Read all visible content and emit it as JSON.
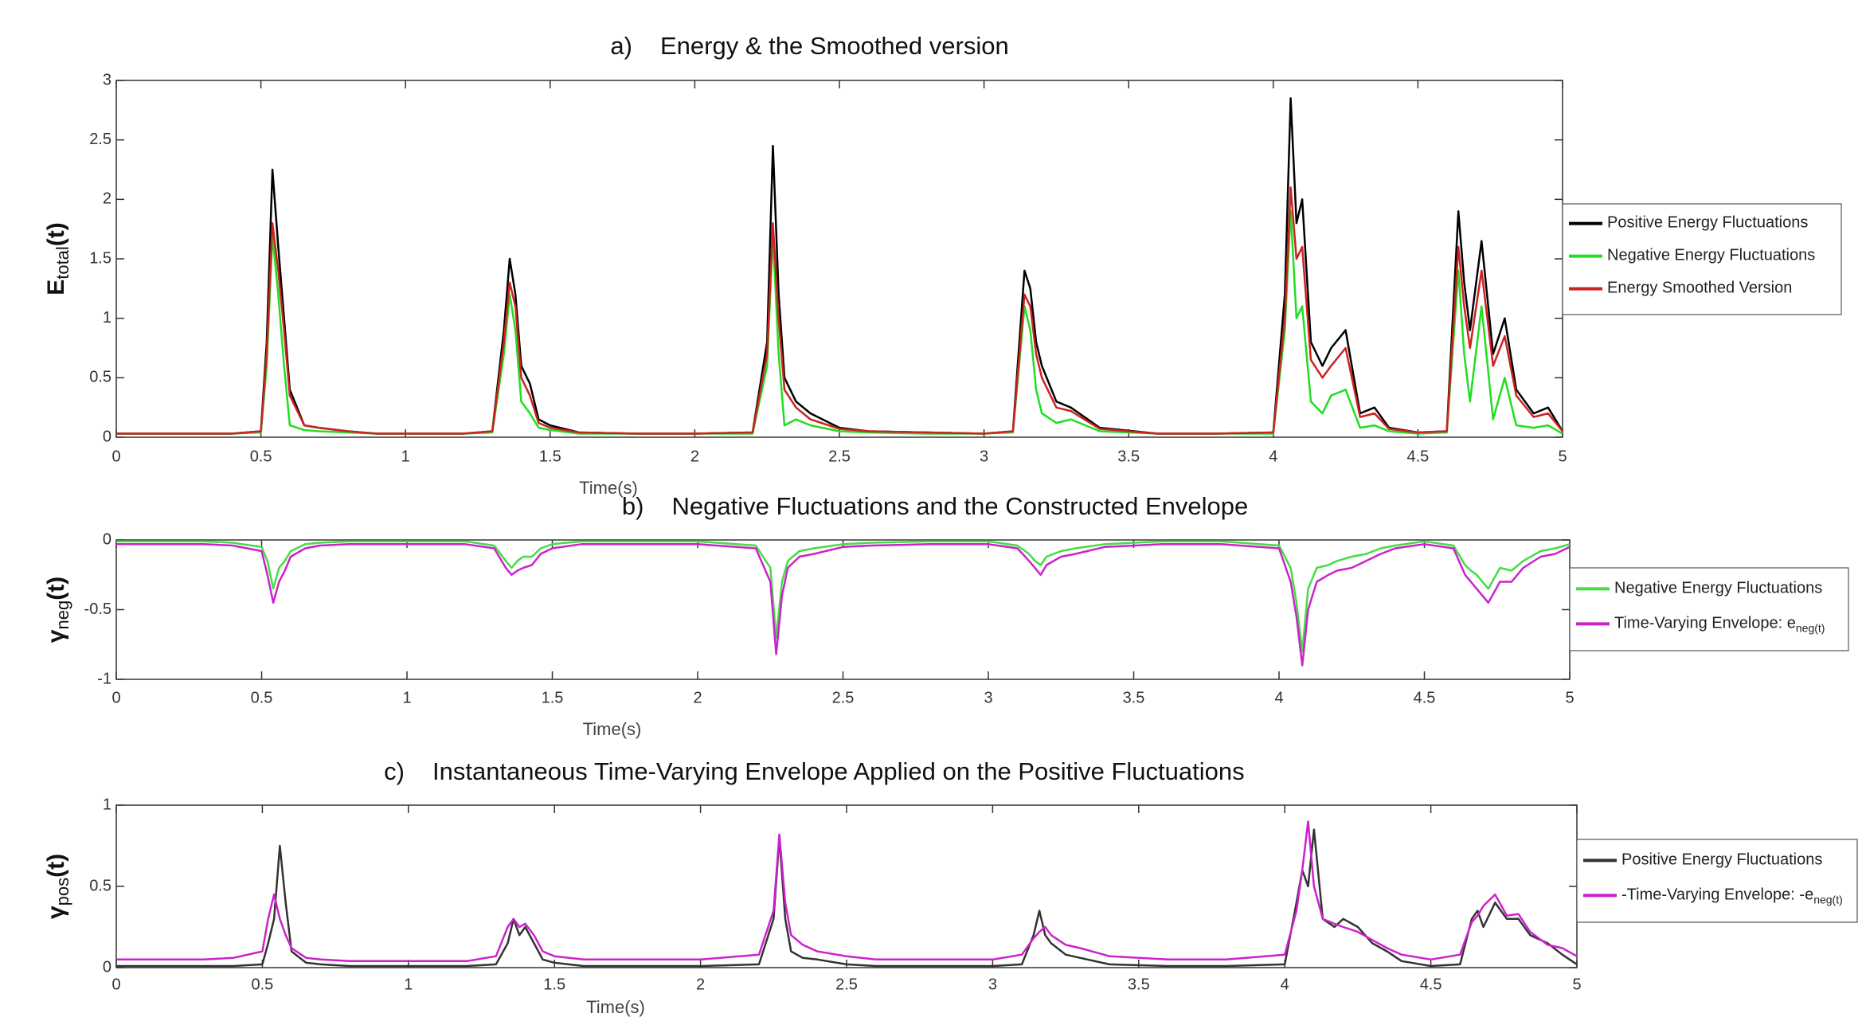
{
  "chart_data": [
    {
      "type": "line",
      "title_tag": "a)",
      "title": "Energy & the Smoothed version",
      "x_label": "Time(s)",
      "y_label": {
        "base": "E",
        "sub": "total",
        "tail": "(t)"
      },
      "xlim": [
        0,
        5
      ],
      "xticks": [
        0,
        0.5,
        1,
        1.5,
        2,
        2.5,
        3,
        3.5,
        4,
        4.5,
        5
      ],
      "ylim": [
        0,
        3
      ],
      "yticks": [
        0,
        0.5,
        1,
        1.5,
        2,
        2.5,
        3
      ],
      "x": [
        0,
        0.1,
        0.2,
        0.3,
        0.4,
        0.5,
        0.52,
        0.54,
        0.56,
        0.58,
        0.6,
        0.65,
        0.7,
        0.8,
        0.9,
        1.0,
        1.1,
        1.2,
        1.3,
        1.34,
        1.36,
        1.38,
        1.4,
        1.43,
        1.46,
        1.5,
        1.6,
        1.8,
        2.0,
        2.2,
        2.25,
        2.27,
        2.29,
        2.31,
        2.35,
        2.4,
        2.5,
        2.6,
        2.8,
        3.0,
        3.1,
        3.14,
        3.16,
        3.18,
        3.2,
        3.25,
        3.3,
        3.4,
        3.6,
        3.8,
        4.0,
        4.04,
        4.06,
        4.08,
        4.1,
        4.13,
        4.17,
        4.2,
        4.25,
        4.3,
        4.35,
        4.4,
        4.5,
        4.6,
        4.64,
        4.66,
        4.68,
        4.72,
        4.76,
        4.8,
        4.84,
        4.9,
        4.95,
        5.0
      ],
      "series": [
        {
          "name": "Positive Energy Fluctuations",
          "color": "#000000",
          "values": [
            0.03,
            0.03,
            0.03,
            0.03,
            0.03,
            0.05,
            0.8,
            2.25,
            1.6,
            1.0,
            0.4,
            0.1,
            0.08,
            0.05,
            0.03,
            0.03,
            0.03,
            0.03,
            0.05,
            0.9,
            1.5,
            1.2,
            0.6,
            0.45,
            0.15,
            0.1,
            0.04,
            0.03,
            0.03,
            0.04,
            0.8,
            2.45,
            1.2,
            0.5,
            0.3,
            0.2,
            0.08,
            0.05,
            0.04,
            0.03,
            0.05,
            1.4,
            1.25,
            0.8,
            0.6,
            0.3,
            0.25,
            0.08,
            0.03,
            0.03,
            0.04,
            1.2,
            2.85,
            1.8,
            2.0,
            0.8,
            0.6,
            0.75,
            0.9,
            0.2,
            0.25,
            0.08,
            0.04,
            0.05,
            1.9,
            1.3,
            0.9,
            1.65,
            0.7,
            1.0,
            0.4,
            0.2,
            0.25,
            0.05
          ]
        },
        {
          "name": "Negative Energy Fluctuations",
          "color": "#22dd22",
          "values": [
            0.03,
            0.03,
            0.03,
            0.03,
            0.03,
            0.04,
            0.6,
            1.7,
            1.2,
            0.6,
            0.1,
            0.06,
            0.05,
            0.04,
            0.03,
            0.03,
            0.03,
            0.03,
            0.04,
            0.7,
            1.2,
            0.9,
            0.3,
            0.2,
            0.08,
            0.06,
            0.03,
            0.03,
            0.03,
            0.03,
            0.6,
            1.7,
            0.7,
            0.1,
            0.15,
            0.1,
            0.05,
            0.04,
            0.03,
            0.03,
            0.04,
            1.1,
            0.9,
            0.4,
            0.2,
            0.12,
            0.15,
            0.05,
            0.03,
            0.03,
            0.03,
            0.9,
            1.9,
            1.0,
            1.1,
            0.3,
            0.2,
            0.35,
            0.4,
            0.08,
            0.1,
            0.05,
            0.03,
            0.04,
            1.4,
            0.7,
            0.3,
            1.1,
            0.15,
            0.5,
            0.1,
            0.08,
            0.1,
            0.03
          ]
        },
        {
          "name": "Energy Smoothed Version",
          "color": "#cc2222",
          "values": [
            0.03,
            0.03,
            0.03,
            0.03,
            0.03,
            0.05,
            0.7,
            1.8,
            1.4,
            0.9,
            0.35,
            0.1,
            0.08,
            0.05,
            0.03,
            0.03,
            0.03,
            0.03,
            0.05,
            0.8,
            1.3,
            1.1,
            0.5,
            0.35,
            0.12,
            0.08,
            0.04,
            0.03,
            0.03,
            0.04,
            0.7,
            1.8,
            1.0,
            0.4,
            0.25,
            0.15,
            0.07,
            0.05,
            0.04,
            0.03,
            0.05,
            1.2,
            1.1,
            0.7,
            0.5,
            0.25,
            0.22,
            0.07,
            0.03,
            0.03,
            0.04,
            1.0,
            2.1,
            1.5,
            1.6,
            0.65,
            0.5,
            0.6,
            0.75,
            0.17,
            0.2,
            0.07,
            0.04,
            0.05,
            1.6,
            1.1,
            0.75,
            1.4,
            0.6,
            0.85,
            0.35,
            0.17,
            0.2,
            0.05
          ]
        }
      ]
    },
    {
      "type": "line",
      "title_tag": "b)",
      "title": "Negative Fluctuations and the Constructed Envelope",
      "x_label": "Time(s)",
      "y_label": {
        "base": "γ",
        "sub": "neg",
        "tail": "(t)"
      },
      "xlim": [
        0,
        5
      ],
      "xticks": [
        0,
        0.5,
        1,
        1.5,
        2,
        2.5,
        3,
        3.5,
        4,
        4.5,
        5
      ],
      "ylim": [
        -1,
        0
      ],
      "yticks": [
        -1,
        -0.5,
        0
      ],
      "x": [
        0,
        0.1,
        0.2,
        0.3,
        0.4,
        0.5,
        0.52,
        0.54,
        0.56,
        0.58,
        0.6,
        0.65,
        0.7,
        0.8,
        0.9,
        1.0,
        1.1,
        1.2,
        1.3,
        1.34,
        1.36,
        1.38,
        1.4,
        1.43,
        1.46,
        1.5,
        1.6,
        1.8,
        2.0,
        2.2,
        2.25,
        2.27,
        2.29,
        2.31,
        2.35,
        2.4,
        2.5,
        2.6,
        2.8,
        3.0,
        3.1,
        3.14,
        3.16,
        3.18,
        3.2,
        3.25,
        3.3,
        3.4,
        3.6,
        3.8,
        4.0,
        4.04,
        4.06,
        4.08,
        4.1,
        4.13,
        4.17,
        4.2,
        4.25,
        4.3,
        4.35,
        4.4,
        4.5,
        4.6,
        4.64,
        4.66,
        4.68,
        4.72,
        4.76,
        4.8,
        4.84,
        4.9,
        4.95,
        5.0
      ],
      "series": [
        {
          "name": "Negative Energy Fluctuations",
          "color": "#44dd44",
          "values": [
            -0.01,
            -0.01,
            -0.01,
            -0.01,
            -0.02,
            -0.05,
            -0.15,
            -0.35,
            -0.2,
            -0.15,
            -0.08,
            -0.03,
            -0.02,
            -0.01,
            -0.01,
            -0.01,
            -0.01,
            -0.01,
            -0.04,
            -0.15,
            -0.2,
            -0.15,
            -0.12,
            -0.12,
            -0.06,
            -0.03,
            -0.01,
            -0.01,
            -0.01,
            -0.04,
            -0.2,
            -0.7,
            -0.3,
            -0.15,
            -0.08,
            -0.06,
            -0.03,
            -0.02,
            -0.01,
            -0.01,
            -0.04,
            -0.1,
            -0.15,
            -0.18,
            -0.12,
            -0.08,
            -0.06,
            -0.03,
            -0.01,
            -0.01,
            -0.04,
            -0.2,
            -0.45,
            -0.8,
            -0.35,
            -0.2,
            -0.18,
            -0.15,
            -0.12,
            -0.1,
            -0.06,
            -0.04,
            -0.01,
            -0.04,
            -0.18,
            -0.22,
            -0.25,
            -0.35,
            -0.2,
            -0.22,
            -0.15,
            -0.08,
            -0.06,
            -0.03
          ]
        },
        {
          "name": "Time-Varying Envelope: e",
          "name_sub": "neg(t)",
          "color": "#cc22cc",
          "values": [
            -0.03,
            -0.03,
            -0.03,
            -0.03,
            -0.04,
            -0.08,
            -0.25,
            -0.45,
            -0.3,
            -0.22,
            -0.12,
            -0.06,
            -0.04,
            -0.03,
            -0.03,
            -0.03,
            -0.03,
            -0.03,
            -0.06,
            -0.2,
            -0.25,
            -0.22,
            -0.2,
            -0.18,
            -0.1,
            -0.06,
            -0.03,
            -0.03,
            -0.03,
            -0.06,
            -0.3,
            -0.82,
            -0.4,
            -0.2,
            -0.12,
            -0.1,
            -0.05,
            -0.04,
            -0.03,
            -0.03,
            -0.06,
            -0.15,
            -0.2,
            -0.25,
            -0.18,
            -0.12,
            -0.1,
            -0.05,
            -0.03,
            -0.03,
            -0.06,
            -0.3,
            -0.55,
            -0.9,
            -0.5,
            -0.3,
            -0.25,
            -0.22,
            -0.2,
            -0.15,
            -0.1,
            -0.06,
            -0.03,
            -0.06,
            -0.25,
            -0.3,
            -0.35,
            -0.45,
            -0.3,
            -0.3,
            -0.2,
            -0.12,
            -0.1,
            -0.05
          ]
        }
      ]
    },
    {
      "type": "line",
      "title_tag": "c)",
      "title": "Instantaneous Time-Varying Envelope Applied on the Positive Fluctuations",
      "x_label": "Time(s)",
      "y_label": {
        "base": "γ",
        "sub": "pos",
        "tail": "(t)"
      },
      "xlim": [
        0,
        5
      ],
      "xticks": [
        0,
        0.5,
        1,
        1.5,
        2,
        2.5,
        3,
        3.5,
        4,
        4.5,
        5
      ],
      "ylim": [
        0,
        1
      ],
      "yticks": [
        0,
        0.5,
        1
      ],
      "x": [
        0,
        0.1,
        0.2,
        0.3,
        0.4,
        0.5,
        0.52,
        0.54,
        0.56,
        0.58,
        0.6,
        0.65,
        0.7,
        0.8,
        0.9,
        1.0,
        1.1,
        1.2,
        1.3,
        1.34,
        1.36,
        1.38,
        1.4,
        1.43,
        1.46,
        1.5,
        1.6,
        1.8,
        2.0,
        2.2,
        2.25,
        2.27,
        2.29,
        2.31,
        2.35,
        2.4,
        2.5,
        2.6,
        2.8,
        3.0,
        3.1,
        3.14,
        3.16,
        3.18,
        3.2,
        3.25,
        3.3,
        3.4,
        3.6,
        3.8,
        4.0,
        4.04,
        4.06,
        4.08,
        4.1,
        4.13,
        4.17,
        4.2,
        4.25,
        4.3,
        4.35,
        4.4,
        4.5,
        4.6,
        4.64,
        4.66,
        4.68,
        4.72,
        4.76,
        4.8,
        4.84,
        4.9,
        4.95,
        5.0
      ],
      "series": [
        {
          "name": "Positive Energy Fluctuations",
          "color": "#333333",
          "values": [
            0.01,
            0.01,
            0.01,
            0.01,
            0.01,
            0.02,
            0.15,
            0.3,
            0.75,
            0.4,
            0.1,
            0.03,
            0.02,
            0.01,
            0.01,
            0.01,
            0.01,
            0.01,
            0.02,
            0.15,
            0.3,
            0.2,
            0.25,
            0.15,
            0.05,
            0.03,
            0.01,
            0.01,
            0.01,
            0.02,
            0.3,
            0.8,
            0.3,
            0.1,
            0.06,
            0.05,
            0.02,
            0.01,
            0.01,
            0.01,
            0.02,
            0.2,
            0.35,
            0.2,
            0.15,
            0.08,
            0.06,
            0.02,
            0.01,
            0.01,
            0.02,
            0.4,
            0.6,
            0.5,
            0.85,
            0.3,
            0.25,
            0.3,
            0.25,
            0.15,
            0.1,
            0.04,
            0.01,
            0.02,
            0.3,
            0.35,
            0.25,
            0.4,
            0.3,
            0.3,
            0.2,
            0.15,
            0.08,
            0.02
          ]
        },
        {
          "name": "-Time-Varying Envelope: -e",
          "name_sub": "neg(t)",
          "color": "#cc22cc",
          "values": [
            0.05,
            0.05,
            0.05,
            0.05,
            0.06,
            0.1,
            0.3,
            0.45,
            0.3,
            0.2,
            0.12,
            0.06,
            0.05,
            0.04,
            0.04,
            0.04,
            0.04,
            0.04,
            0.07,
            0.25,
            0.3,
            0.25,
            0.27,
            0.2,
            0.1,
            0.07,
            0.05,
            0.05,
            0.05,
            0.08,
            0.35,
            0.82,
            0.4,
            0.2,
            0.14,
            0.1,
            0.07,
            0.05,
            0.05,
            0.05,
            0.08,
            0.18,
            0.22,
            0.25,
            0.2,
            0.14,
            0.12,
            0.07,
            0.05,
            0.05,
            0.08,
            0.35,
            0.6,
            0.9,
            0.5,
            0.3,
            0.27,
            0.25,
            0.22,
            0.17,
            0.12,
            0.08,
            0.05,
            0.08,
            0.28,
            0.32,
            0.38,
            0.45,
            0.32,
            0.33,
            0.22,
            0.14,
            0.12,
            0.07
          ]
        }
      ]
    }
  ]
}
